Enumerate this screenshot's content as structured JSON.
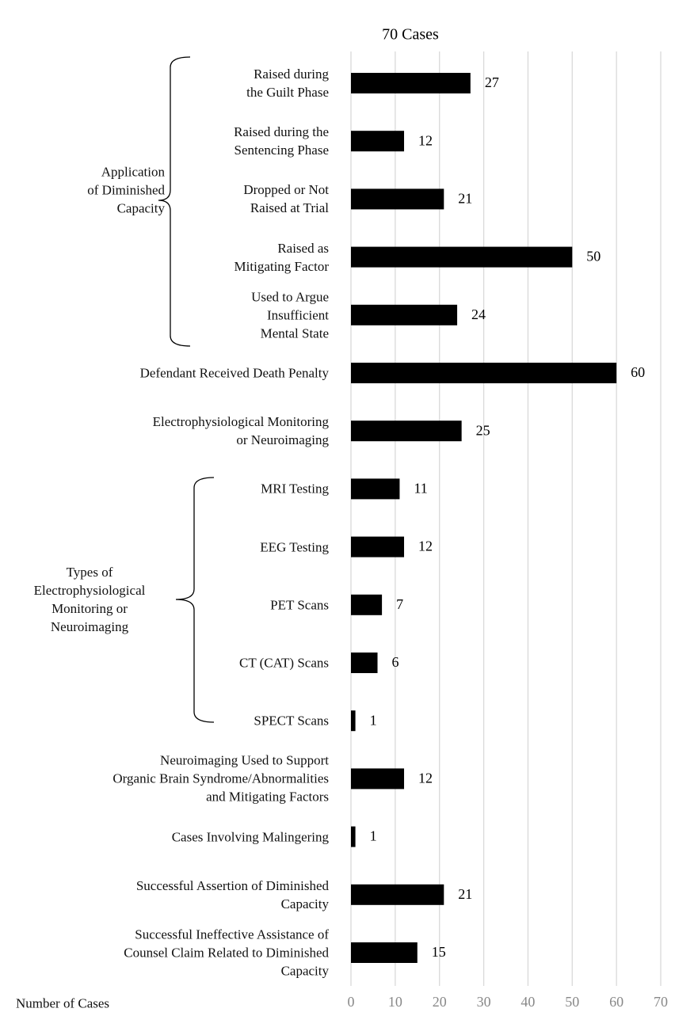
{
  "chart_data": {
    "type": "barh",
    "title": "70 Cases",
    "xlabel": "Number of Cases",
    "categories": [
      "Raised during\nthe Guilt Phase",
      "Raised during the\nSentencing Phase",
      "Dropped or Not\nRaised at Trial",
      "Raised as\nMitigating Factor",
      "Used to Argue\nInsufficient\nMental State",
      "Defendant Received Death Penalty",
      "Electrophysiological Monitoring\nor Neuroimaging",
      "MRI Testing",
      "EEG Testing",
      "PET Scans",
      "CT (CAT) Scans",
      "SPECT Scans",
      "Neuroimaging Used to Support\nOrganic Brain Syndrome/Abnormalities\nand Mitigating Factors",
      "Cases Involving Malingering",
      "Successful Assertion of Diminished\nCapacity",
      "Successful Ineffective Assistance of\nCounsel Claim Related to Diminished\nCapacity"
    ],
    "values": [
      27,
      12,
      21,
      50,
      24,
      60,
      25,
      11,
      12,
      7,
      6,
      1,
      12,
      1,
      21,
      15
    ],
    "color": "#000000",
    "groups": [
      "Application\nof Diminished\nCapacity",
      "Types of\nElectrophysiological\nMonitoring or\nNeuroimaging"
    ],
    "xlim": [
      0,
      70
    ],
    "xticks": [
      0,
      10,
      20,
      30,
      40,
      50,
      60,
      70
    ],
    "grid": true
  }
}
